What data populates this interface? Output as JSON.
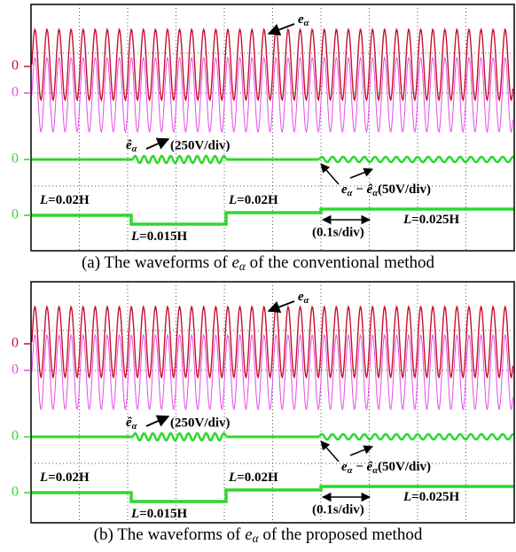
{
  "panels": [
    {
      "zero_labels": [
        "0",
        "0",
        "0",
        "0"
      ],
      "label_e": {
        "base": "e",
        "sub": "α"
      },
      "label_ehat": {
        "base": "ê",
        "sub": "α",
        "scale": "(250V/div)"
      },
      "label_error": {
        "base1": "e",
        "sub1": "α",
        "minus": " − ",
        "base2": "ê",
        "sub2": "α",
        "scale": "(50V/div)"
      },
      "inductances": [
        {
          "symbol": "L",
          "value": "=0.02H"
        },
        {
          "symbol": "L",
          "value": "=0.015H"
        },
        {
          "symbol": "L",
          "value": "=0.02H"
        },
        {
          "symbol": "L",
          "value": "=0.025H"
        }
      ],
      "time_scale": "(0.1s/div)",
      "caption": {
        "prefix": "(a) The waveforms of ",
        "symbol": "e",
        "sub": "α",
        "suffix": " of the conventional method"
      }
    },
    {
      "zero_labels": [
        "0",
        "0",
        "0",
        "0"
      ],
      "label_e": {
        "base": "e",
        "sub": "α"
      },
      "label_ehat": {
        "base": "ê",
        "sub": "α",
        "scale": "(250V/div)"
      },
      "label_error": {
        "base1": "e",
        "sub1": "α",
        "minus": " − ",
        "base2": "ê",
        "sub2": "α",
        "scale": "(50V/div)"
      },
      "inductances": [
        {
          "symbol": "L",
          "value": "=0.02H"
        },
        {
          "symbol": "L",
          "value": "=0.015H"
        },
        {
          "symbol": "L",
          "value": "=0.02H"
        },
        {
          "symbol": "L",
          "value": "=0.025H"
        }
      ],
      "time_scale": "(0.1s/div)",
      "caption": {
        "prefix": "(b) The waveforms of ",
        "symbol": "e",
        "sub": "α",
        "suffix": " of the proposed method"
      }
    }
  ]
}
